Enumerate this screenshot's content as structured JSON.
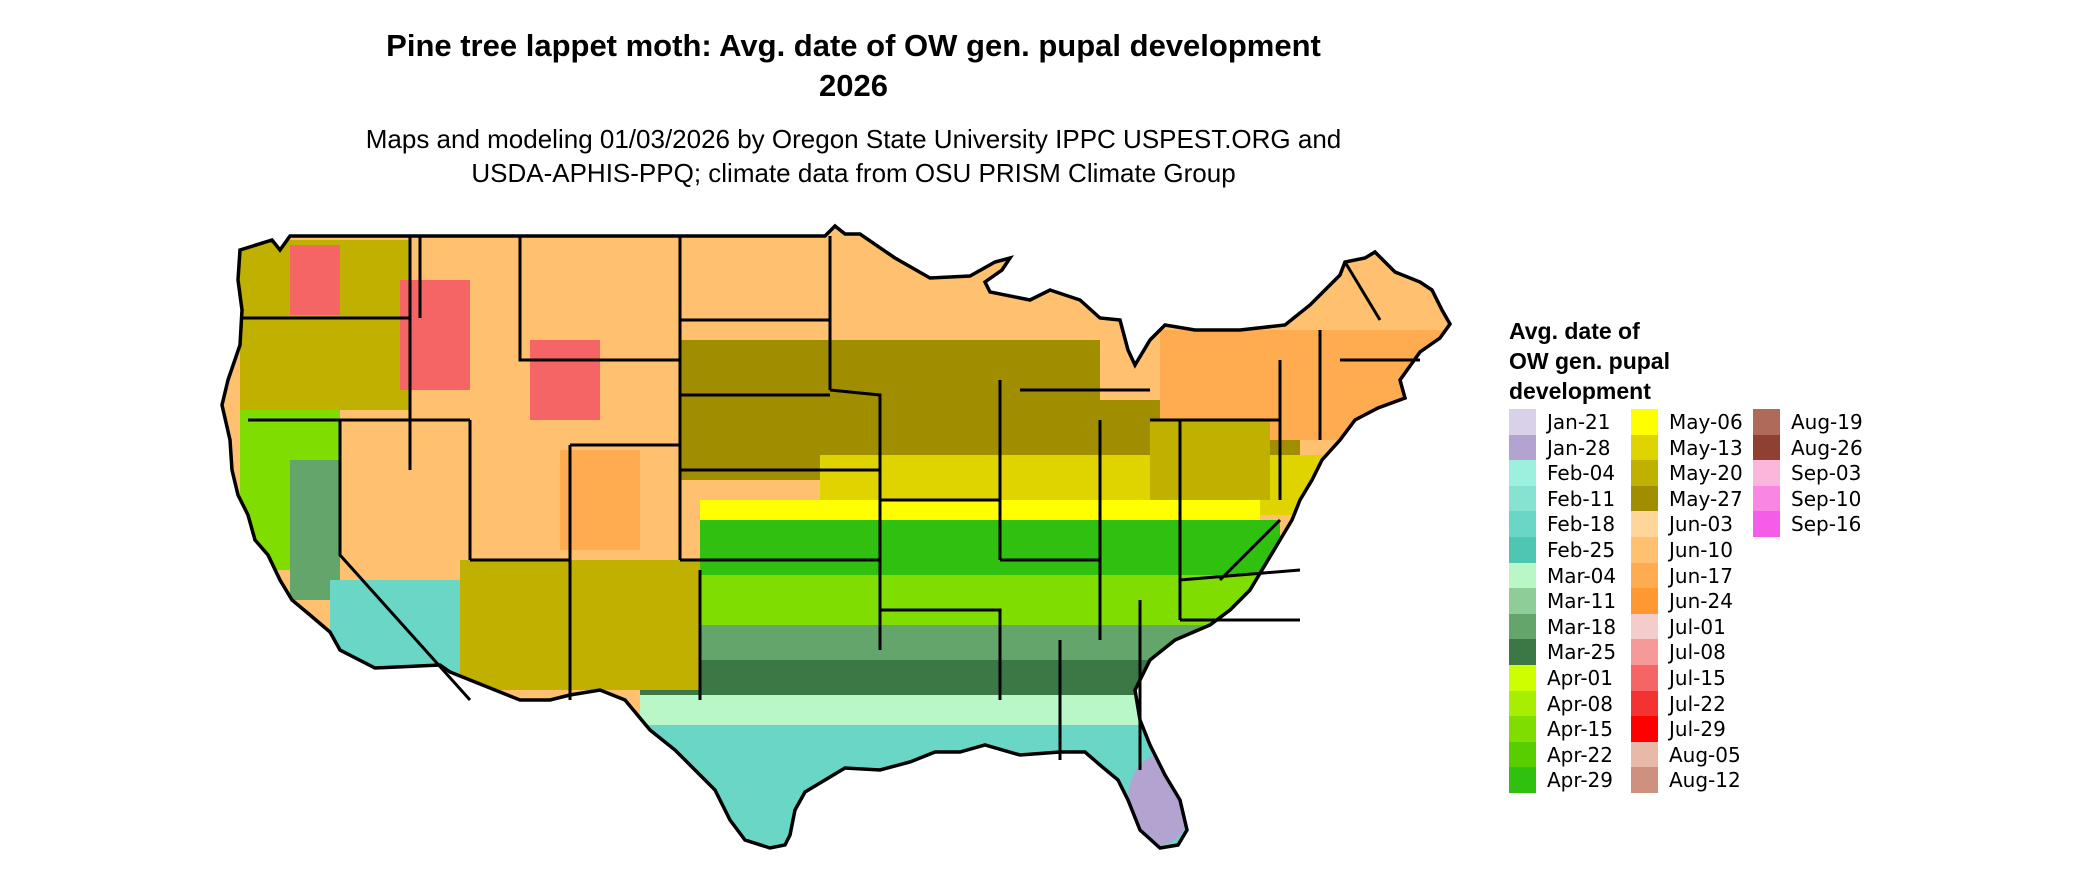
{
  "title": {
    "line1": "Pine tree lappet moth: Avg. date of OW gen. pupal development",
    "line2": "2026"
  },
  "subtitle": {
    "line1": "Maps and modeling 01/03/2026 by Oregon State University IPPC USPEST.ORG and",
    "line2": "USDA-APHIS-PPQ; climate data from OSU PRISM Climate Group"
  },
  "legend": {
    "title_line1": "Avg. date of",
    "title_line2": "OW gen. pupal",
    "title_line3": "development",
    "columns": [
      [
        {
          "label": "Jan-21",
          "color": "#d9d0ea"
        },
        {
          "label": "Jan-28",
          "color": "#b3a3d0"
        },
        {
          "label": "Feb-04",
          "color": "#9bf0de"
        },
        {
          "label": "Feb-11",
          "color": "#86e3d2"
        },
        {
          "label": "Feb-18",
          "color": "#6ad6c5"
        },
        {
          "label": "Feb-25",
          "color": "#4fc5b4"
        },
        {
          "label": "Mar-04",
          "color": "#b9f7c6"
        },
        {
          "label": "Mar-11",
          "color": "#8fcd98"
        },
        {
          "label": "Mar-18",
          "color": "#64a56c"
        },
        {
          "label": "Mar-25",
          "color": "#3c7845"
        },
        {
          "label": "Apr-01",
          "color": "#ccff00"
        },
        {
          "label": "Apr-08",
          "color": "#a7ee00"
        },
        {
          "label": "Apr-15",
          "color": "#80dd00"
        },
        {
          "label": "Apr-22",
          "color": "#58cd00"
        },
        {
          "label": "Apr-29",
          "color": "#30c010"
        }
      ],
      [
        {
          "label": "May-06",
          "color": "#ffff00"
        },
        {
          "label": "May-13",
          "color": "#e0d400"
        },
        {
          "label": "May-20",
          "color": "#c0b000"
        },
        {
          "label": "May-27",
          "color": "#a08e00"
        },
        {
          "label": "Jun-03",
          "color": "#ffd699"
        },
        {
          "label": "Jun-10",
          "color": "#ffc070"
        },
        {
          "label": "Jun-17",
          "color": "#ffac50"
        },
        {
          "label": "Jun-24",
          "color": "#ff9830"
        },
        {
          "label": "Jul-01",
          "color": "#f5cccc"
        },
        {
          "label": "Jul-08",
          "color": "#f59999"
        },
        {
          "label": "Jul-15",
          "color": "#f56565"
        },
        {
          "label": "Jul-22",
          "color": "#f53232"
        },
        {
          "label": "Jul-29",
          "color": "#ff0000"
        },
        {
          "label": "Aug-05",
          "color": "#e8b8a8"
        },
        {
          "label": "Aug-12",
          "color": "#d09080"
        }
      ],
      [
        {
          "label": "Aug-19",
          "color": "#b06a5a"
        },
        {
          "label": "Aug-26",
          "color": "#904030"
        },
        {
          "label": "Sep-03",
          "color": "#fbb6dc"
        },
        {
          "label": "Sep-10",
          "color": "#f886e2"
        },
        {
          "label": "Sep-16",
          "color": "#f55ce8"
        }
      ]
    ]
  },
  "map": {
    "region_colors": {
      "northwest_high": "#ffc070",
      "northwest_low": "#c0b000",
      "mountains": "#f56565",
      "rockies": "#ffac50",
      "southwest_desert": "#6ad6c5",
      "california_valley": "#64a56c",
      "california_coast": "#80dd00",
      "plains_north": "#ffc070",
      "plains_mid": "#a08e00",
      "corn_belt": "#e0d400",
      "mid_south": "#30c010",
      "deep_south": "#3c7845",
      "gulf_coast": "#6ad6c5",
      "florida": "#b3a3d0",
      "northeast": "#ffac50"
    }
  }
}
